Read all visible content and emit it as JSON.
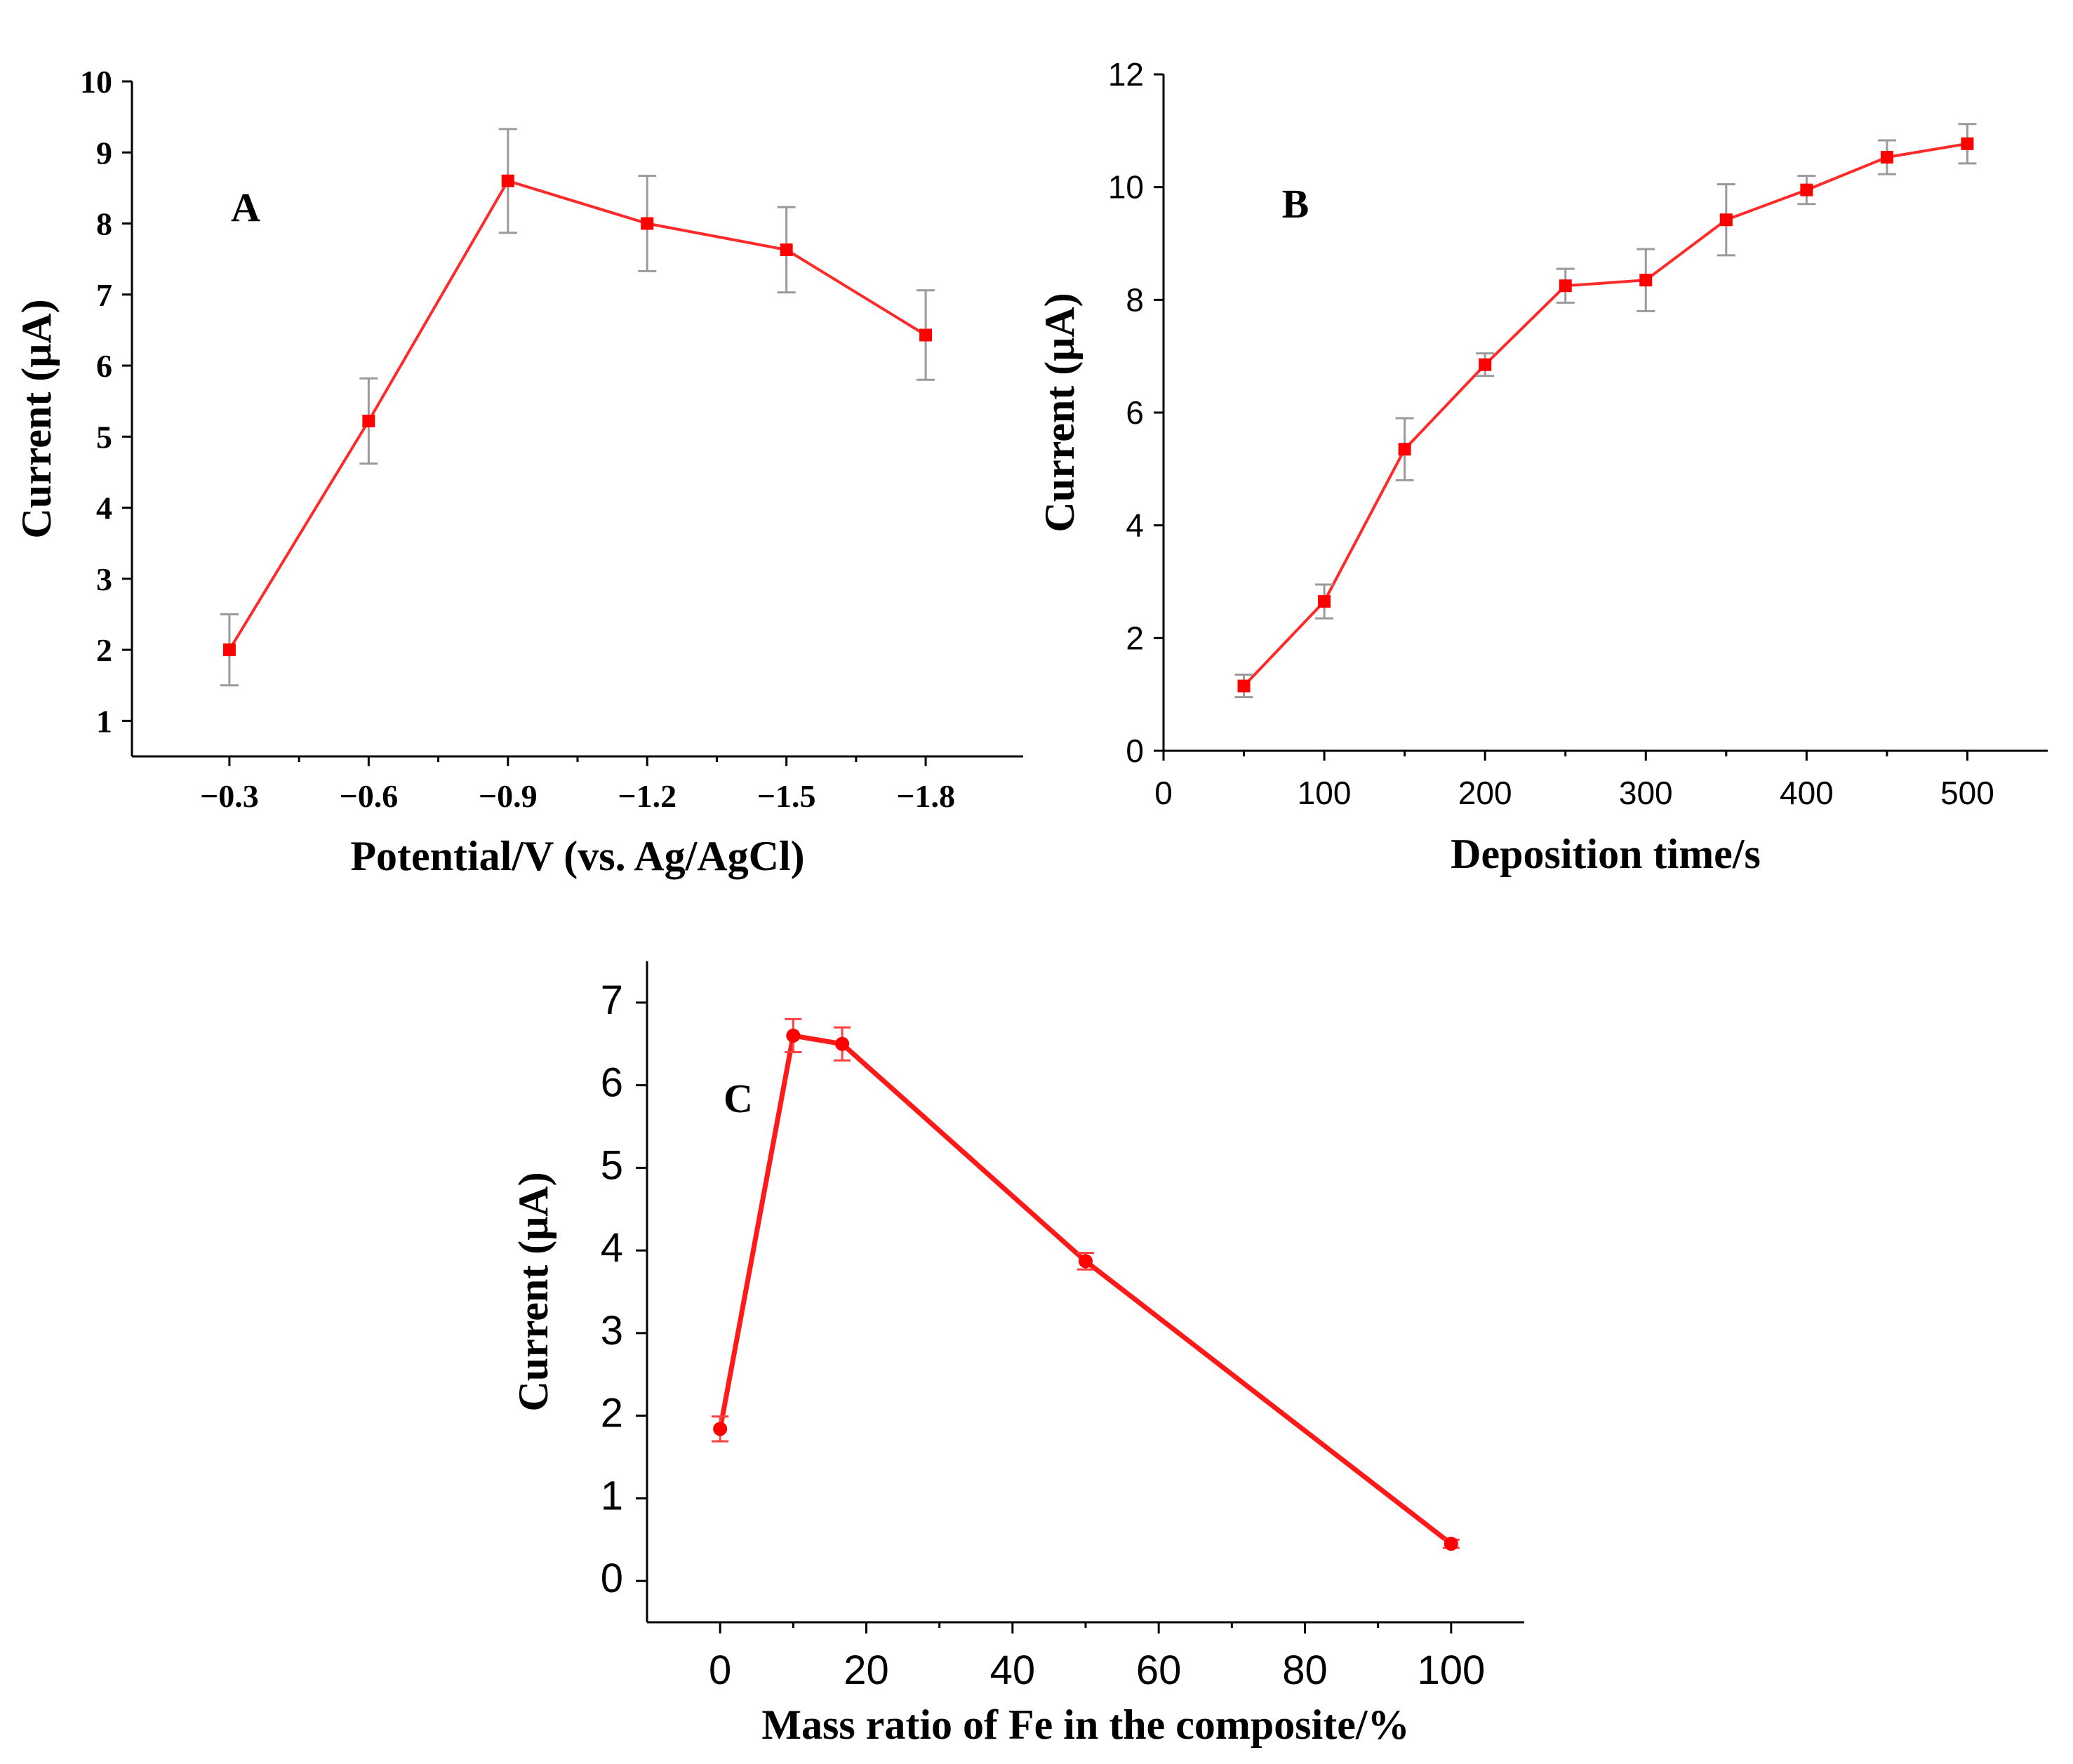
{
  "chart_data": [
    {
      "id": "A",
      "type": "line",
      "panel_label": "A",
      "title": "",
      "xlabel": "Potential/V (vs. Ag/AgCl)",
      "ylabel": "Current (μA)",
      "categories": [
        "−0.3",
        "−0.6",
        "−0.9",
        "−1.2",
        "−1.5",
        "−1.8"
      ],
      "x": [
        -0.3,
        -0.6,
        -0.9,
        -1.2,
        -1.5,
        -1.8
      ],
      "series": [
        {
          "name": "Current",
          "values": [
            2.0,
            5.22,
            8.6,
            8.0,
            7.63,
            6.43
          ],
          "errors": [
            0.5,
            0.6,
            0.73,
            0.67,
            0.6,
            0.63
          ]
        }
      ],
      "ylim": [
        0.5,
        10
      ],
      "yticks": [
        1,
        2,
        3,
        4,
        5,
        6,
        7,
        8,
        9,
        10
      ],
      "ytick_labels": [
        "1",
        "2",
        "3",
        "4",
        "5",
        "6",
        "7",
        "8",
        "9",
        "10"
      ],
      "grid": false,
      "marker": "square",
      "color": "#ff0000",
      "error_color": "#9a9a9a"
    },
    {
      "id": "B",
      "type": "line",
      "panel_label": "B",
      "title": "",
      "xlabel": "Deposition time/s",
      "ylabel": "Current (μA)",
      "x": [
        50,
        100,
        150,
        200,
        250,
        300,
        350,
        400,
        450,
        500
      ],
      "series": [
        {
          "name": "Current",
          "values": [
            1.15,
            2.65,
            5.35,
            6.85,
            8.25,
            8.35,
            9.42,
            9.95,
            10.53,
            10.77
          ],
          "errors": [
            0.2,
            0.3,
            0.55,
            0.2,
            0.3,
            0.55,
            0.63,
            0.25,
            0.3,
            0.35
          ]
        }
      ],
      "xlim": [
        0,
        550
      ],
      "ylim": [
        0,
        12
      ],
      "xticks": [
        0,
        100,
        200,
        300,
        400,
        500
      ],
      "xtick_labels": [
        "0",
        "100",
        "200",
        "300",
        "400",
        "500"
      ],
      "yticks": [
        0,
        2,
        4,
        6,
        8,
        10,
        12
      ],
      "ytick_labels": [
        "0",
        "2",
        "4",
        "6",
        "8",
        "10",
        "12"
      ],
      "grid": false,
      "marker": "square",
      "color": "#ff0000",
      "error_color": "#9a9a9a"
    },
    {
      "id": "C",
      "type": "line",
      "panel_label": "C",
      "title": "",
      "xlabel": "Mass ratio of Fe in the composite/%",
      "ylabel": "Current (μA)",
      "x": [
        0,
        10,
        16.7,
        50,
        100
      ],
      "series": [
        {
          "name": "Current",
          "values": [
            1.84,
            6.6,
            6.5,
            3.87,
            0.45
          ],
          "errors": [
            0.15,
            0.2,
            0.2,
            0.1,
            0.05
          ]
        }
      ],
      "xlim": [
        -10,
        110
      ],
      "ylim": [
        -0.5,
        7.5
      ],
      "xticks": [
        0,
        20,
        40,
        60,
        80,
        100
      ],
      "xtick_labels": [
        "0",
        "20",
        "40",
        "60",
        "80",
        "100"
      ],
      "yticks": [
        0,
        1,
        2,
        3,
        4,
        5,
        6,
        7
      ],
      "ytick_labels": [
        "0",
        "1",
        "2",
        "3",
        "4",
        "5",
        "6",
        "7"
      ],
      "grid": false,
      "marker": "circle",
      "color": "#ff0000",
      "error_color": "#ff4040"
    }
  ]
}
